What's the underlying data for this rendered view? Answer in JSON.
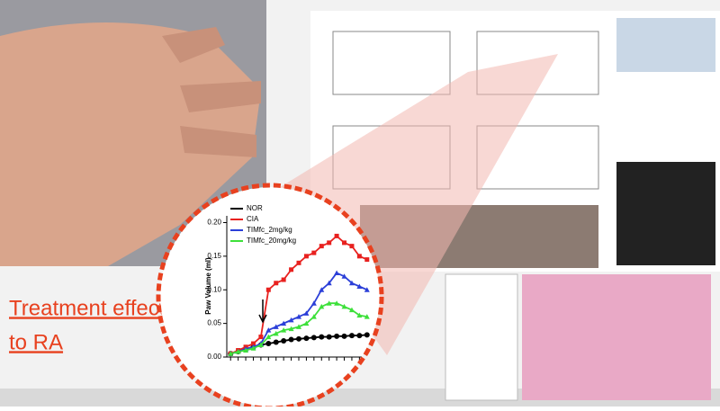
{
  "slide": {
    "title_lines": [
      "Treatment effect",
      "to RA"
    ]
  },
  "chart_data": {
    "type": "line",
    "ylabel": "Paw Volume (ml)",
    "categories": [
      null,
      null,
      null,
      null,
      null,
      null,
      null,
      null,
      null,
      null,
      null,
      null,
      null,
      null,
      null,
      null,
      null,
      null,
      null
    ],
    "series": [
      {
        "name": "NOR",
        "color": "#000000",
        "values": [
          0.005,
          0.008,
          0.012,
          0.015,
          0.018,
          0.02,
          0.022,
          0.024,
          0.026,
          0.027,
          0.028,
          0.029,
          0.03,
          0.03,
          0.031,
          0.031,
          0.032,
          0.032,
          0.033
        ]
      },
      {
        "name": "CIA",
        "color": "#e8211f",
        "values": [
          0.005,
          0.01,
          0.015,
          0.02,
          0.03,
          0.1,
          0.11,
          0.115,
          0.13,
          0.14,
          0.15,
          0.155,
          0.165,
          0.17,
          0.18,
          0.17,
          0.165,
          0.15,
          0.145
        ]
      },
      {
        "name": "TIMfc_2mg/kg",
        "color": "#2b3fd8",
        "values": [
          0.005,
          0.008,
          0.012,
          0.015,
          0.02,
          0.04,
          0.045,
          0.05,
          0.055,
          0.06,
          0.065,
          0.08,
          0.1,
          0.11,
          0.125,
          0.12,
          0.11,
          0.105,
          0.1
        ]
      },
      {
        "name": "TIMfc_20mg/kg",
        "color": "#3de03a",
        "values": [
          0.005,
          0.008,
          0.01,
          0.013,
          0.018,
          0.03,
          0.035,
          0.04,
          0.042,
          0.045,
          0.05,
          0.06,
          0.075,
          0.08,
          0.08,
          0.075,
          0.07,
          0.062,
          0.06
        ]
      }
    ],
    "ylim": [
      0,
      0.21
    ],
    "yticks": [
      {
        "value": 0,
        "label": "0.00"
      },
      {
        "value": 0.05,
        "label": "0.05"
      },
      {
        "value": 0.1,
        "label": "0.10"
      },
      {
        "value": 0.15,
        "label": "0.15"
      },
      {
        "value": 0.2,
        "label": "0.20"
      }
    ]
  }
}
